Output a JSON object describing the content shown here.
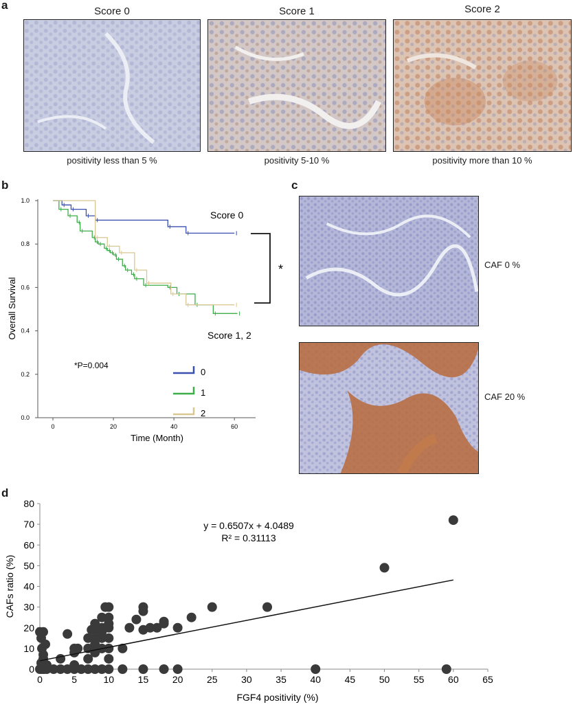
{
  "panel_a": {
    "letter": "a",
    "images": [
      {
        "title": "Score 0",
        "caption": "positivity less than 5 %",
        "stain": "#bfc3da"
      },
      {
        "title": "Score 1",
        "caption": "positivity 5-10 %",
        "stain": "#c9b9b4"
      },
      {
        "title": "Score 2",
        "caption": "positivity more than 10 %",
        "stain": "#cfa68c"
      }
    ]
  },
  "panel_c": {
    "letter": "c",
    "images": [
      {
        "label": "CAF 0 %",
        "stain": "#a9acd0"
      },
      {
        "label": "CAF 20 %",
        "stain": "#c2784a"
      }
    ]
  },
  "chart_data": [
    {
      "panel": "b",
      "type": "line",
      "xlabel": "Time (Month)",
      "ylabel": "Overall Survival",
      "xlim": [
        -5,
        67
      ],
      "ylim": [
        0,
        1.0
      ],
      "xticks": [
        "0",
        "20",
        "40",
        "60"
      ],
      "yticks": [
        "0.0",
        "0.2",
        "0.4",
        "0.6",
        "0.8",
        "1.0"
      ],
      "annotations": {
        "score0": "Score 0",
        "score12": "Score 1, 2",
        "star": "*",
        "pvalue": "*P=0.004"
      },
      "legend_position": "bottom-center",
      "series": [
        {
          "name": "0",
          "color": "#3b4fb0",
          "x": [
            0,
            3,
            6,
            11,
            14,
            38,
            44,
            60
          ],
          "y": [
            1.0,
            0.98,
            0.96,
            0.93,
            0.91,
            0.88,
            0.85,
            0.85
          ]
        },
        {
          "name": "1",
          "color": "#3cae47",
          "x": [
            0,
            2,
            5,
            8,
            9,
            13,
            14,
            15,
            17,
            18,
            19,
            20,
            21,
            23,
            24,
            26,
            27,
            30,
            38,
            41,
            47,
            53,
            61
          ],
          "y": [
            1.0,
            0.96,
            0.93,
            0.9,
            0.86,
            0.83,
            0.81,
            0.8,
            0.78,
            0.77,
            0.76,
            0.75,
            0.73,
            0.7,
            0.68,
            0.66,
            0.64,
            0.61,
            0.6,
            0.57,
            0.52,
            0.48,
            0.48
          ]
        },
        {
          "name": "2",
          "color": "#d8c793",
          "x": [
            0,
            14,
            18,
            22,
            27,
            31,
            39,
            44,
            60
          ],
          "y": [
            1.0,
            0.83,
            0.79,
            0.76,
            0.68,
            0.62,
            0.57,
            0.52,
            0.52
          ]
        }
      ]
    },
    {
      "panel": "d",
      "type": "scatter",
      "xlabel": "FGF4 positivity (%)",
      "ylabel": "CAFs ratio (%)",
      "xlim": [
        0,
        65
      ],
      "ylim": [
        0,
        80
      ],
      "xticks": [
        0,
        5,
        10,
        15,
        20,
        25,
        30,
        35,
        40,
        45,
        50,
        55,
        60,
        65
      ],
      "yticks": [
        0,
        10,
        20,
        30,
        40,
        50,
        60,
        70,
        80
      ],
      "equation": "y = 0.6507x + 4.0489",
      "r2": "R² = 0.31113",
      "trendline": {
        "slope": 0.6507,
        "intercept": 4.0489,
        "x_range": [
          0,
          60
        ]
      },
      "points": [
        [
          0,
          0
        ],
        [
          0.3,
          0
        ],
        [
          0.6,
          0
        ],
        [
          1,
          0
        ],
        [
          0.2,
          3
        ],
        [
          0.5,
          5
        ],
        [
          0.3,
          10
        ],
        [
          0.8,
          12
        ],
        [
          0.2,
          15
        ],
        [
          0.5,
          18
        ],
        [
          0,
          18
        ],
        [
          1,
          2
        ],
        [
          0.5,
          7
        ],
        [
          2,
          0
        ],
        [
          3,
          0
        ],
        [
          3,
          5
        ],
        [
          4,
          0
        ],
        [
          4,
          17
        ],
        [
          5,
          0
        ],
        [
          5,
          2
        ],
        [
          5,
          8
        ],
        [
          5,
          10
        ],
        [
          5.5,
          10
        ],
        [
          6,
          0
        ],
        [
          7,
          0
        ],
        [
          7,
          5
        ],
        [
          7,
          10
        ],
        [
          7,
          15
        ],
        [
          7.5,
          19
        ],
        [
          8,
          0
        ],
        [
          8,
          8
        ],
        [
          8,
          10
        ],
        [
          8,
          12
        ],
        [
          8,
          15
        ],
        [
          8,
          19
        ],
        [
          8,
          22
        ],
        [
          9,
          0
        ],
        [
          9,
          10
        ],
        [
          9,
          15
        ],
        [
          9,
          18
        ],
        [
          9,
          20
        ],
        [
          9,
          25
        ],
        [
          10,
          0
        ],
        [
          10,
          5
        ],
        [
          10,
          10
        ],
        [
          10,
          15
        ],
        [
          10,
          20
        ],
        [
          10,
          22
        ],
        [
          10,
          25
        ],
        [
          10,
          30
        ],
        [
          9.5,
          30
        ],
        [
          12,
          0
        ],
        [
          12,
          10
        ],
        [
          13,
          20
        ],
        [
          14,
          24
        ],
        [
          15,
          0
        ],
        [
          15,
          19
        ],
        [
          15,
          28
        ],
        [
          15,
          30
        ],
        [
          16,
          20
        ],
        [
          17,
          20
        ],
        [
          18,
          0
        ],
        [
          18,
          22
        ],
        [
          18,
          23
        ],
        [
          20,
          0
        ],
        [
          20,
          20
        ],
        [
          22,
          25
        ],
        [
          25,
          30
        ],
        [
          33,
          30
        ],
        [
          40,
          0
        ],
        [
          50,
          49
        ],
        [
          59,
          0
        ],
        [
          60,
          72
        ]
      ]
    }
  ]
}
